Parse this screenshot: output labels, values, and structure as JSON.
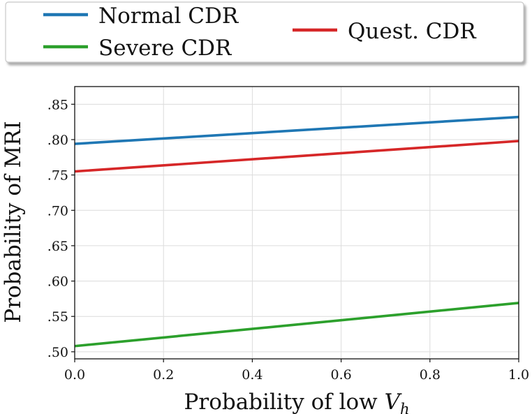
{
  "chart_data": {
    "type": "line",
    "xlabel": "Probability of low V_h",
    "xlabel_main": "Probability of low ",
    "xlabel_var": "V",
    "xlabel_sub": "h",
    "ylabel": "Probability of MRI",
    "xlim": [
      0.0,
      1.0
    ],
    "ylim": [
      0.49,
      0.875
    ],
    "x_ticks": [
      0.0,
      0.2,
      0.4,
      0.6,
      0.8,
      1.0
    ],
    "x_tick_labels": [
      "0.0",
      "0.2",
      "0.4",
      "0.6",
      "0.8",
      "1.0"
    ],
    "y_ticks": [
      0.5,
      0.55,
      0.6,
      0.65,
      0.7,
      0.75,
      0.8,
      0.85
    ],
    "y_tick_labels": [
      ".50",
      ".55",
      ".60",
      ".65",
      ".70",
      ".75",
      ".80",
      ".85"
    ],
    "grid": true,
    "legend_position": "top, outside plot",
    "series": [
      {
        "name": "Normal CDR",
        "color": "#1f77b4",
        "x": [
          0.0,
          1.0
        ],
        "y": [
          0.794,
          0.832
        ]
      },
      {
        "name": "Severe CDR",
        "color": "#2ca02c",
        "x": [
          0.0,
          1.0
        ],
        "y": [
          0.508,
          0.569
        ]
      },
      {
        "name": "Quest. CDR",
        "color": "#d62728",
        "x": [
          0.0,
          1.0
        ],
        "y": [
          0.755,
          0.798
        ]
      }
    ]
  }
}
